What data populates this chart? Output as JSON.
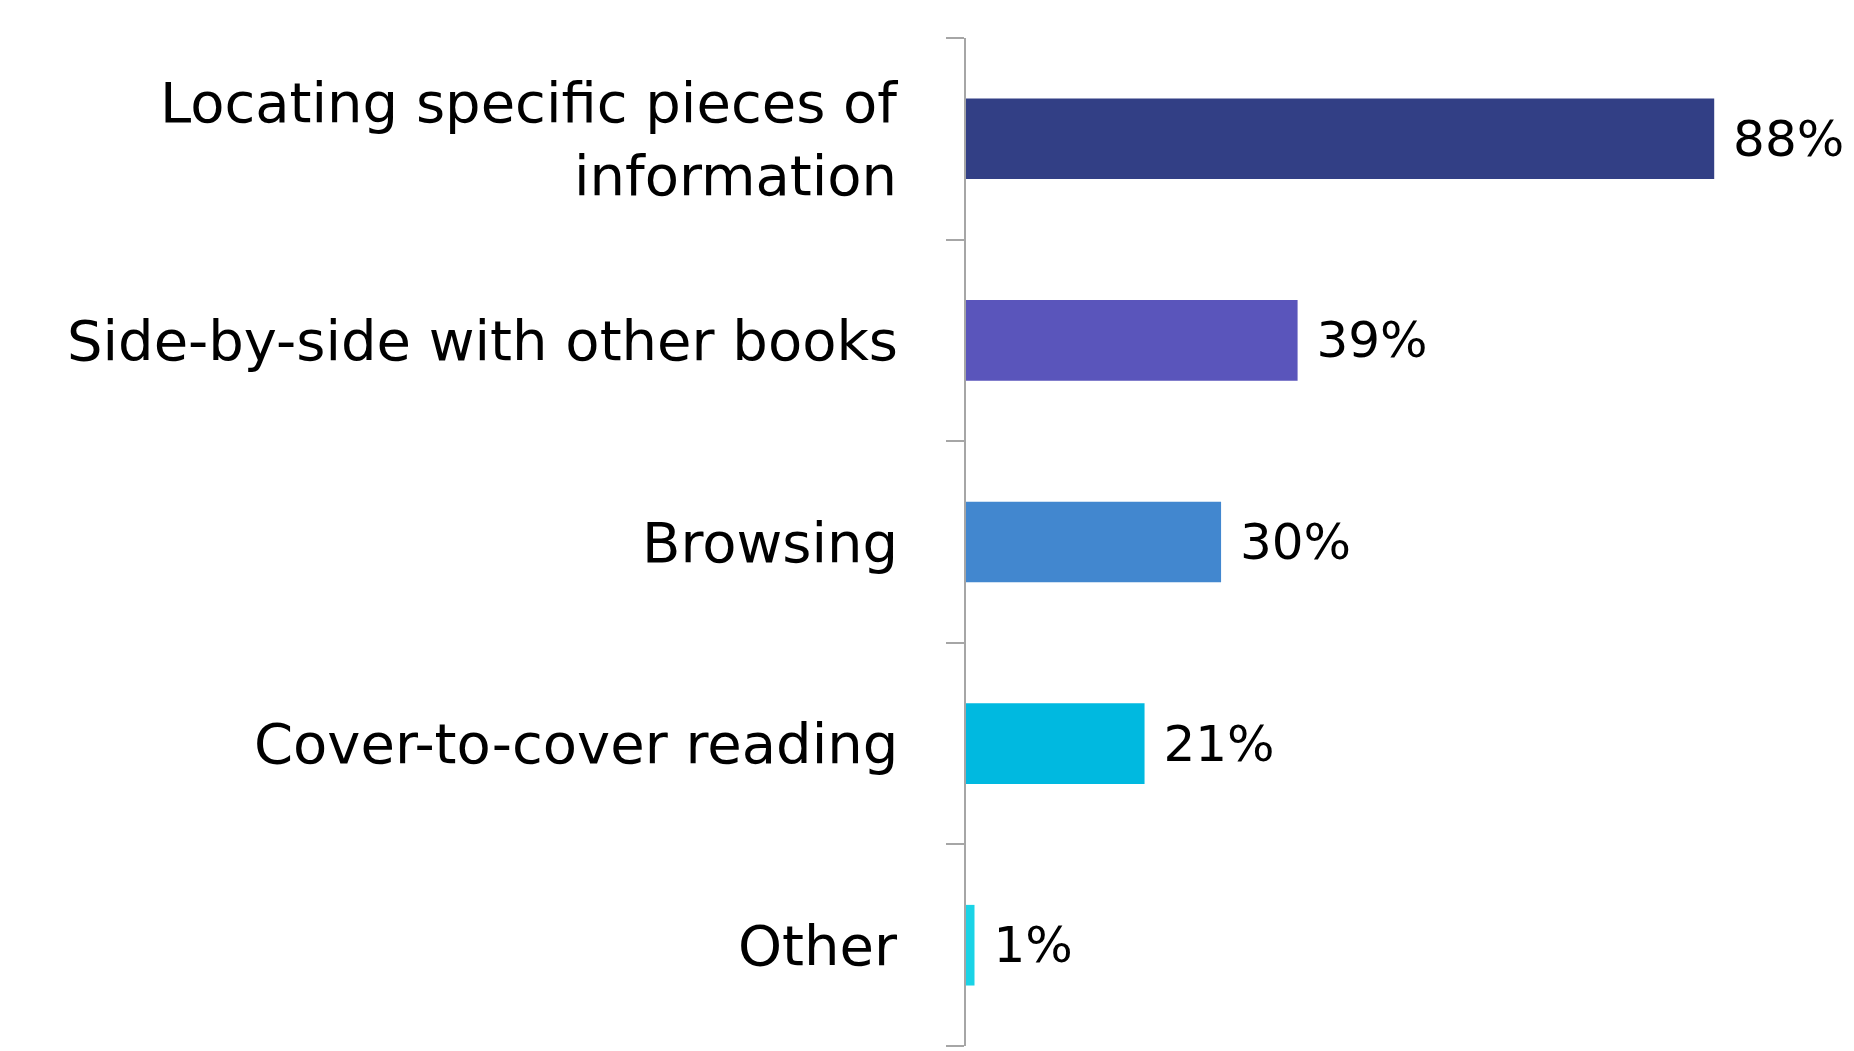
{
  "chart_data": {
    "type": "bar",
    "orientation": "horizontal",
    "categories": [
      "Locating specific pieces of information",
      "Side-by-side with other books",
      "Browsing",
      "Cover-to-cover reading",
      "Other"
    ],
    "values": [
      88,
      39,
      30,
      21,
      1
    ],
    "colors": [
      "#323f85",
      "#5a55bb",
      "#4287cf",
      "#00b9e0",
      "#1ad3e6"
    ],
    "value_labels": [
      "88%",
      "39%",
      "30%",
      "21%",
      "1%"
    ],
    "legend": false
  }
}
